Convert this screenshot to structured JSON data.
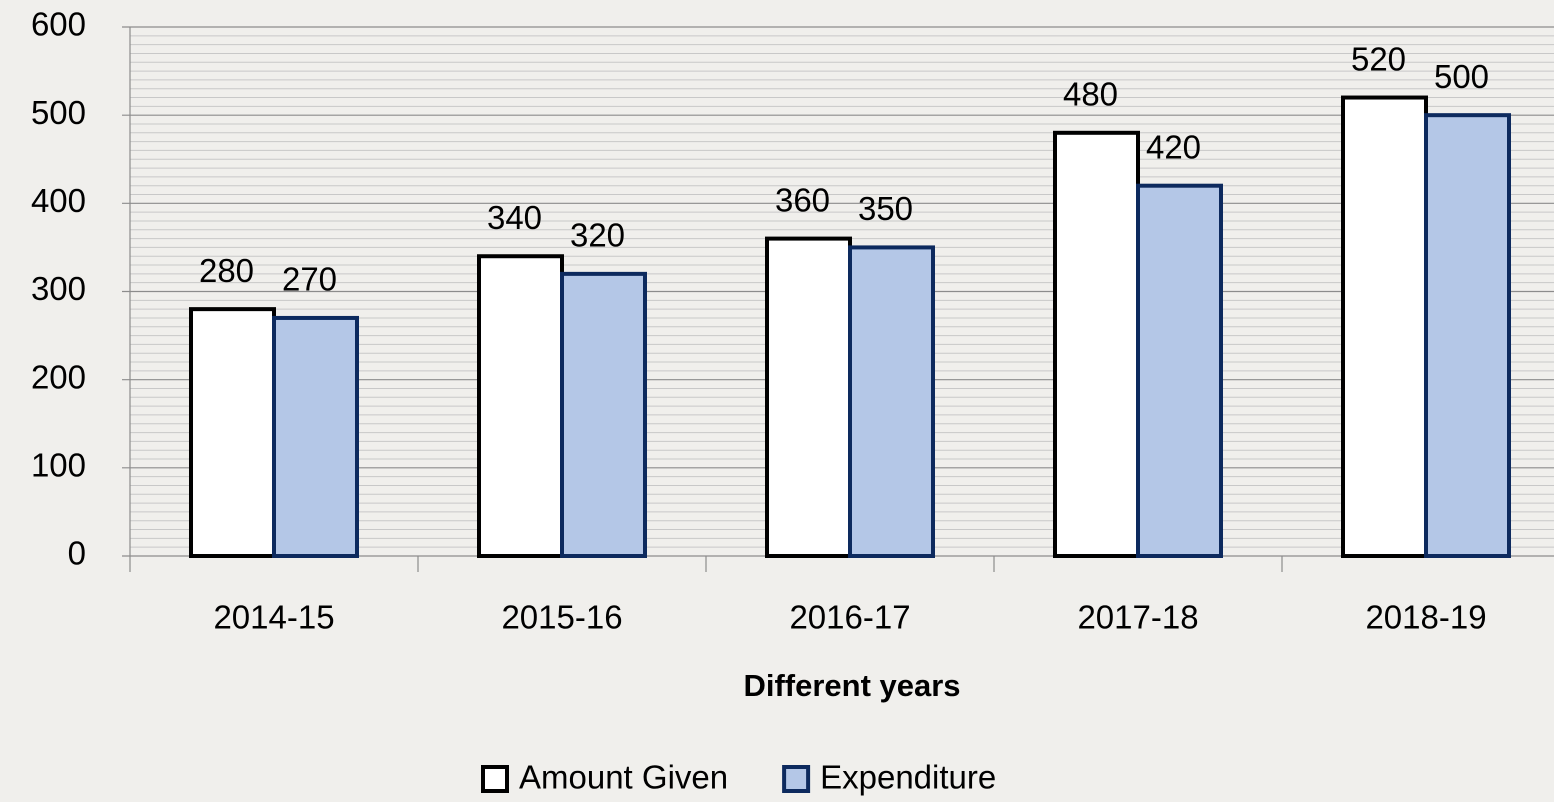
{
  "chart_data": {
    "type": "bar",
    "x_label": "Different years",
    "categories": [
      "2014-15",
      "2015-16",
      "2016-17",
      "2017-18",
      "2018-19"
    ],
    "series": [
      {
        "name": "Amount Given",
        "color": "#ffffff",
        "edge_color": "#000000",
        "values": [
          280,
          340,
          360,
          480,
          520
        ]
      },
      {
        "name": "Expenditure",
        "color": "#b4c7e7",
        "edge_color": "#0d2a5e",
        "values": [
          270,
          320,
          350,
          420,
          500
        ]
      }
    ],
    "ylim": [
      0,
      600
    ],
    "yticks": [
      0,
      100,
      200,
      300,
      400,
      500,
      600
    ],
    "grid": true,
    "legend": "bottom"
  }
}
